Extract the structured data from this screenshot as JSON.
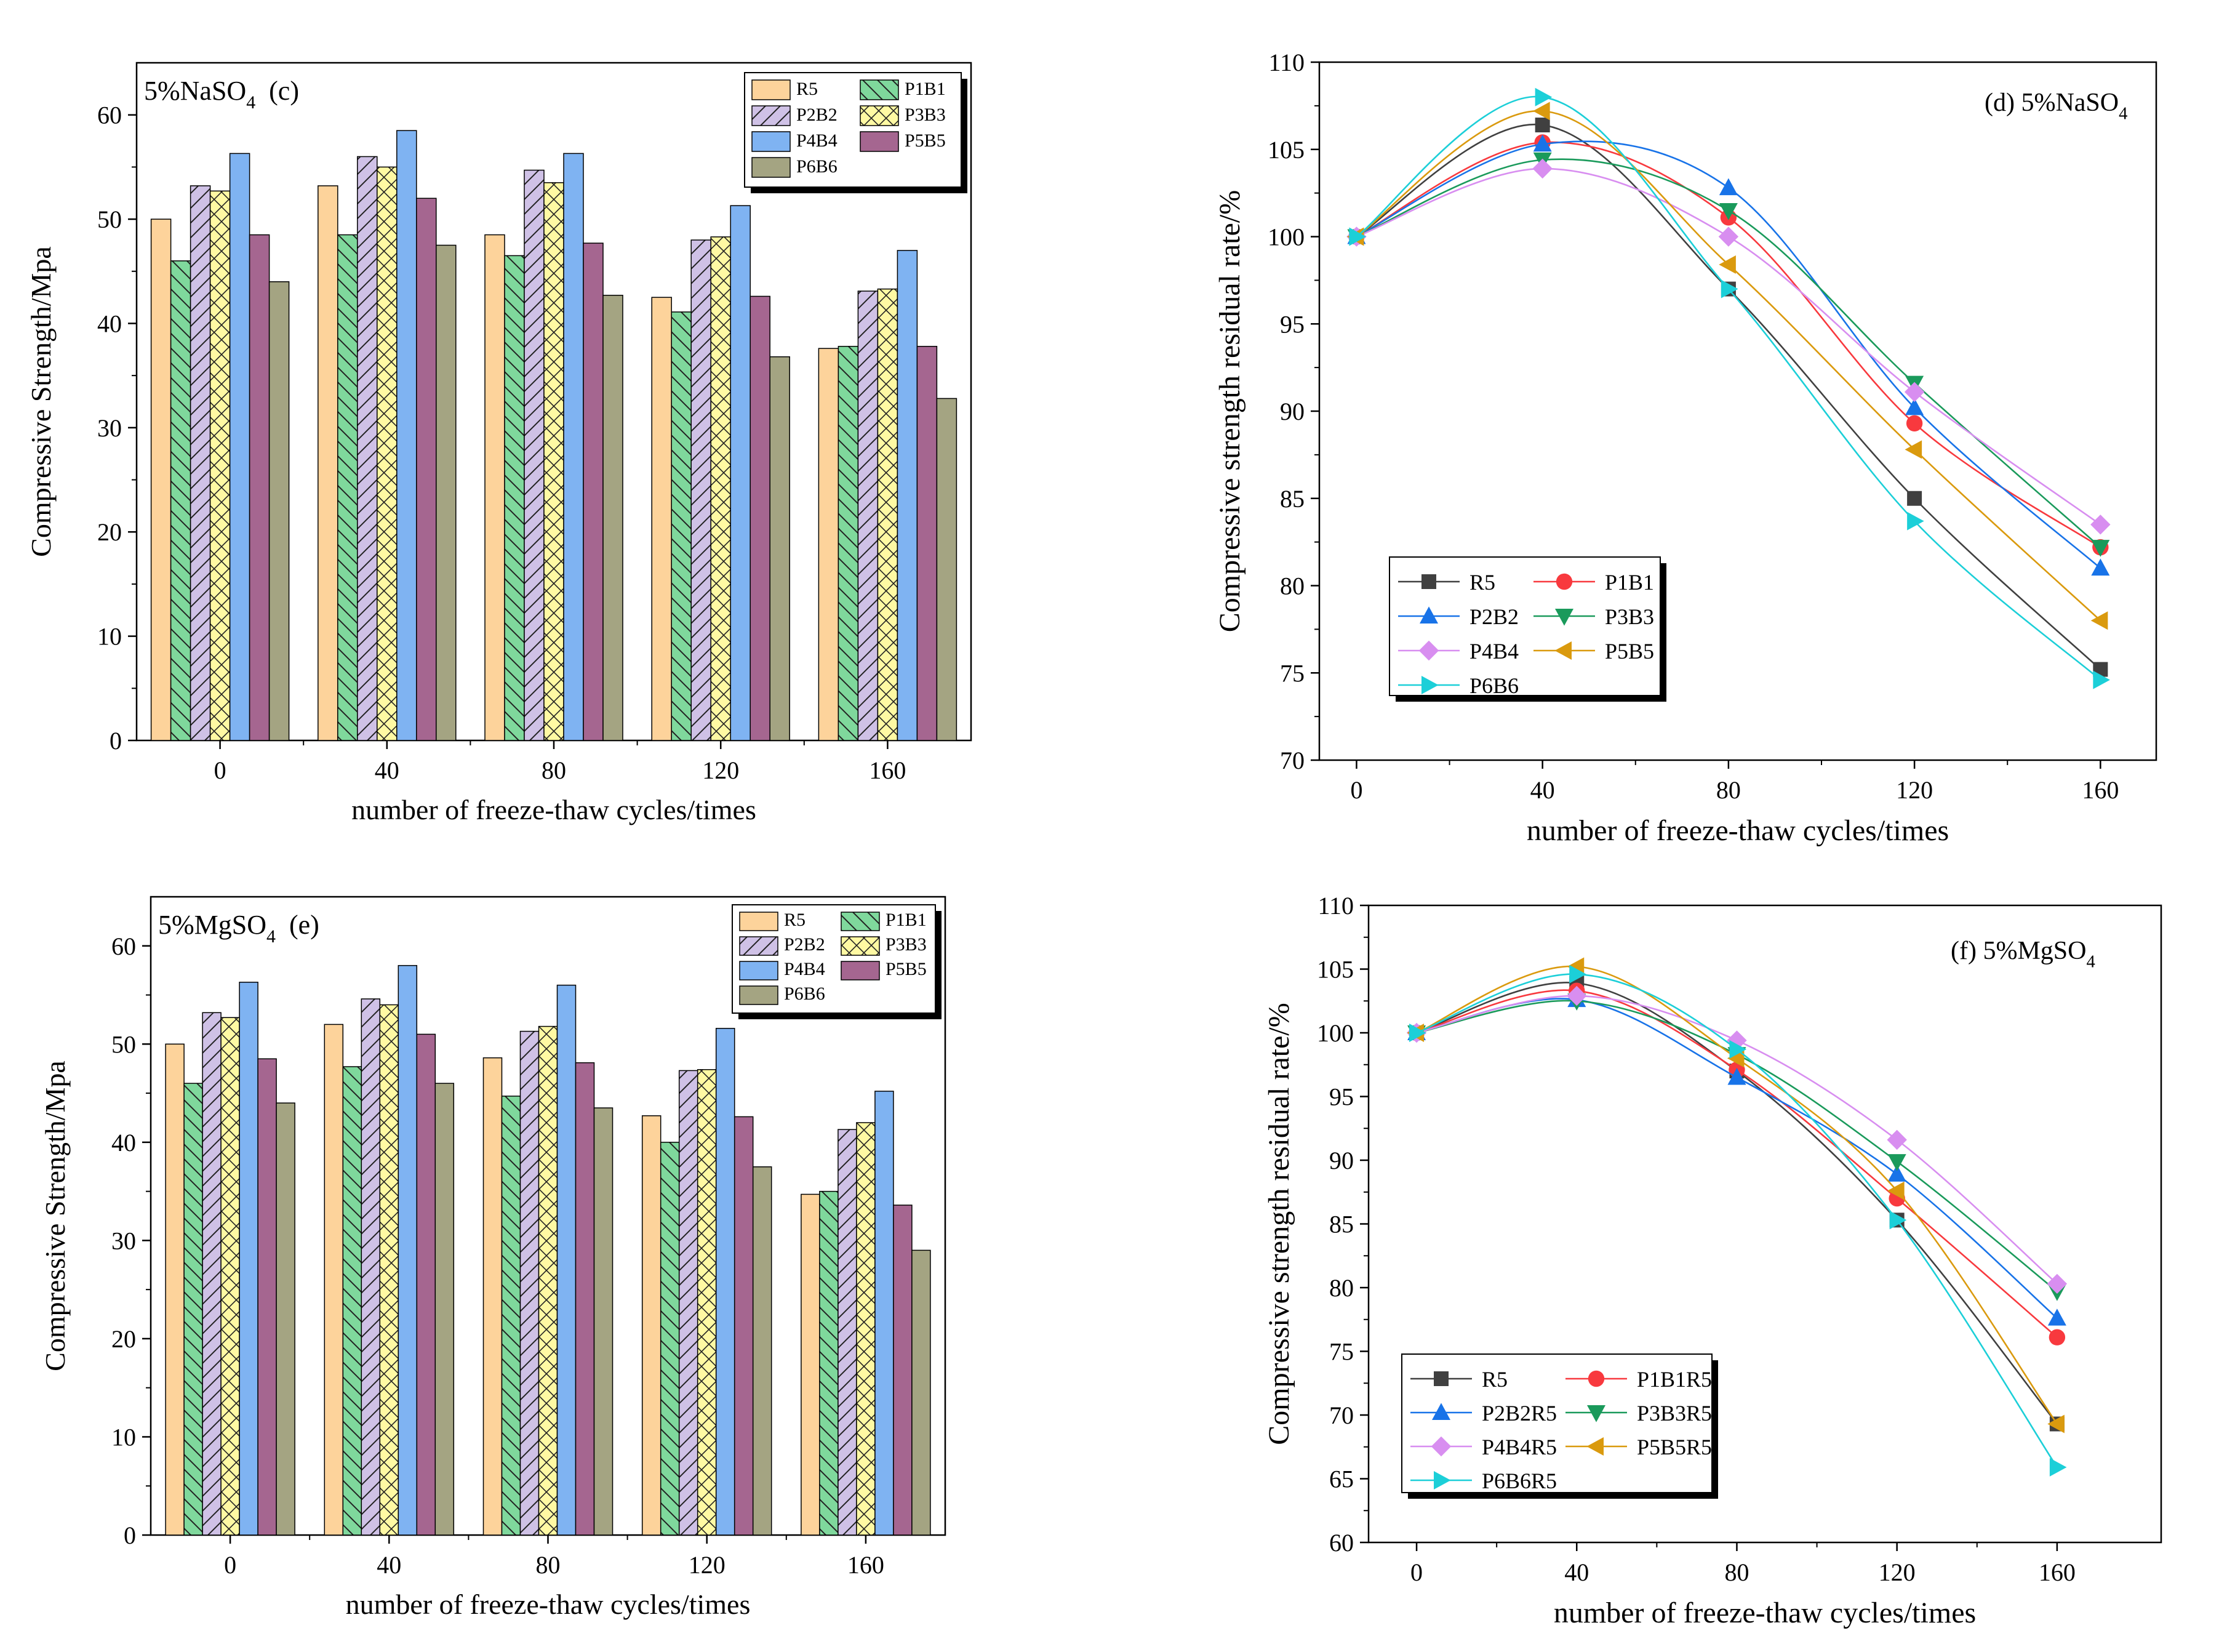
{
  "charts": [
    {
      "type": "bar",
      "panel": "c",
      "title": "5%NaSO4",
      "title_main": "5%NaSO",
      "title_sub": "4",
      "title_suffix": "(c)",
      "xlabel": "number of freeze-thaw cycles/times",
      "ylabel": "Compressive Strength/Mpa",
      "categories": [
        "0",
        "40",
        "80",
        "120",
        "160"
      ],
      "ylim": [
        0,
        65
      ],
      "yticks": [
        "0",
        "10",
        "20",
        "30",
        "40",
        "50",
        "60"
      ],
      "legend_position": "top-right",
      "series": [
        {
          "name": "R5",
          "values": [
            50.0,
            53.2,
            48.5,
            42.5,
            37.6
          ]
        },
        {
          "name": "P1B1",
          "values": [
            46.0,
            48.5,
            46.5,
            41.1,
            37.8
          ]
        },
        {
          "name": "P2B2",
          "values": [
            53.2,
            56.0,
            54.7,
            48.0,
            43.1
          ]
        },
        {
          "name": "P3B3",
          "values": [
            52.7,
            55.0,
            53.5,
            48.3,
            43.3
          ]
        },
        {
          "name": "P4B4",
          "values": [
            56.3,
            58.5,
            56.3,
            51.3,
            47.0
          ]
        },
        {
          "name": "P5B5",
          "values": [
            48.5,
            52.0,
            47.7,
            42.6,
            37.8
          ]
        },
        {
          "name": "P6B6",
          "values": [
            44.0,
            47.5,
            42.7,
            36.8,
            32.8
          ]
        }
      ]
    },
    {
      "type": "line",
      "panel": "d",
      "title": "(d) 5%NaSO4",
      "title_main": "(d)  5%NaSO",
      "title_sub": "4",
      "xlabel": "number of freeze-thaw cycles/times",
      "ylabel": "Compressive strength residual rate/%",
      "x": [
        0,
        40,
        80,
        120,
        160
      ],
      "xticks": [
        "0",
        "40",
        "80",
        "120",
        "160"
      ],
      "xlim": [
        -8,
        172
      ],
      "ylim": [
        70,
        110
      ],
      "yticks": [
        "70",
        "75",
        "80",
        "85",
        "90",
        "95",
        "100",
        "105",
        "110"
      ],
      "legend_position": "bottom-left",
      "series": [
        {
          "name": "R5",
          "values": [
            100,
            106.4,
            97.0,
            85.0,
            75.2
          ]
        },
        {
          "name": "P1B1",
          "values": [
            100,
            105.4,
            101.1,
            89.3,
            82.2
          ]
        },
        {
          "name": "P2B2",
          "values": [
            100,
            105.3,
            102.8,
            90.2,
            81.0
          ]
        },
        {
          "name": "P3B3",
          "values": [
            100,
            104.4,
            101.5,
            91.6,
            82.2
          ]
        },
        {
          "name": "P4B4",
          "values": [
            100,
            103.9,
            100.0,
            91.1,
            83.5
          ]
        },
        {
          "name": "P5B5",
          "values": [
            100,
            107.2,
            98.4,
            87.8,
            78.0
          ]
        },
        {
          "name": "P6B6",
          "values": [
            100,
            108.0,
            97.0,
            83.7,
            74.6
          ]
        }
      ]
    },
    {
      "type": "bar",
      "panel": "e",
      "title": "5%MgSO4",
      "title_main": "5%MgSO",
      "title_sub": "4",
      "title_suffix": "(e)",
      "xlabel": "number of freeze-thaw cycles/times",
      "ylabel": "Compressive Strength/Mpa",
      "categories": [
        "0",
        "40",
        "80",
        "120",
        "160"
      ],
      "ylim": [
        0,
        65
      ],
      "yticks": [
        "0",
        "10",
        "20",
        "30",
        "40",
        "50",
        "60"
      ],
      "legend_position": "top-right",
      "series": [
        {
          "name": "R5",
          "values": [
            50.0,
            52.0,
            48.6,
            42.7,
            34.7
          ]
        },
        {
          "name": "P1B1",
          "values": [
            46.0,
            47.7,
            44.7,
            40.0,
            35.0
          ]
        },
        {
          "name": "P2B2",
          "values": [
            53.2,
            54.6,
            51.3,
            47.3,
            41.3
          ]
        },
        {
          "name": "P3B3",
          "values": [
            52.7,
            54.0,
            51.8,
            47.4,
            42.0
          ]
        },
        {
          "name": "P4B4",
          "values": [
            56.3,
            58.0,
            56.0,
            51.6,
            45.2
          ]
        },
        {
          "name": "P5B5",
          "values": [
            48.5,
            51.0,
            48.1,
            42.6,
            33.6
          ]
        },
        {
          "name": "P6B6",
          "values": [
            44.0,
            46.0,
            43.5,
            37.5,
            29.0
          ]
        }
      ]
    },
    {
      "type": "line",
      "panel": "f",
      "title": "(f) 5%MgSO4",
      "title_main": "(f)  5%MgSO",
      "title_sub": "4",
      "xlabel": "number of freeze-thaw cycles/times",
      "ylabel": "Compressive strength residual rate/%",
      "x": [
        0,
        40,
        80,
        120,
        160
      ],
      "xticks": [
        "0",
        "40",
        "80",
        "120",
        "160"
      ],
      "xlim": [
        -12,
        186
      ],
      "ylim": [
        60,
        110
      ],
      "yticks": [
        "60",
        "65",
        "70",
        "75",
        "80",
        "85",
        "90",
        "95",
        "100",
        "105",
        "110"
      ],
      "legend_position": "bottom-left",
      "series": [
        {
          "name": "R5",
          "values": [
            100,
            103.9,
            97.0,
            85.3,
            69.3
          ]
        },
        {
          "name": "P1B1R5",
          "values": [
            100,
            103.3,
            97.1,
            87.0,
            76.1
          ]
        },
        {
          "name": "P2B2R5",
          "values": [
            100,
            102.6,
            96.5,
            88.9,
            77.6
          ]
        },
        {
          "name": "P3B3R5",
          "values": [
            100,
            102.5,
            98.3,
            89.9,
            79.7
          ]
        },
        {
          "name": "P4B4R5",
          "values": [
            100,
            102.9,
            99.4,
            91.6,
            80.3
          ]
        },
        {
          "name": "P5B5R5",
          "values": [
            100,
            105.2,
            98.0,
            87.6,
            69.3
          ]
        },
        {
          "name": "P6B6R5",
          "values": [
            100,
            104.6,
            98.7,
            85.3,
            65.9
          ]
        }
      ]
    }
  ],
  "colors": {
    "bar_fills": [
      "#FDD39B",
      "#7FD89C",
      "#CFC1E6",
      "#FFF9A3",
      "#7FB3F2",
      "#A56690",
      "#A4A482"
    ],
    "bar_hatch": [
      "none",
      "diag-back",
      "diag-fwd",
      "cross",
      "none",
      "none",
      "none"
    ],
    "line_colors": [
      "#404040",
      "#F8393E",
      "#1873E8",
      "#1A9A5B",
      "#D88EF0",
      "#DA9A0E",
      "#1CCFD8"
    ],
    "line_markers": [
      "square",
      "circle",
      "triangle-up",
      "triangle-down",
      "diamond",
      "triangle-left",
      "triangle-right"
    ]
  }
}
